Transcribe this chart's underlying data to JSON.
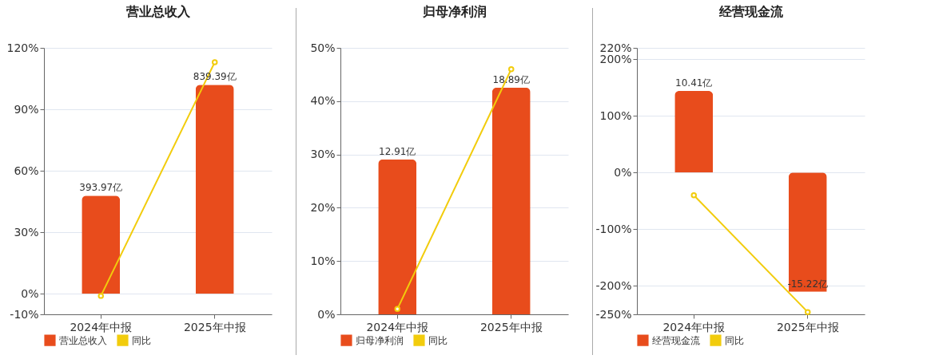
{
  "chart_data": [
    {
      "type": "bar",
      "title": "营业总收入",
      "categories": [
        "2024年中报",
        "2025年中报"
      ],
      "series": [
        {
          "name": "营业总收入",
          "axis": "y2",
          "color": "#e84c1c",
          "values": [
            393.97,
            839.39
          ],
          "value_labels": [
            "393.97亿",
            "839.39亿"
          ]
        },
        {
          "name": "同比",
          "type": "line",
          "color": "#f2cc0c",
          "values": [
            -1,
            113
          ]
        }
      ],
      "ylim": [
        -10,
        120
      ],
      "yticks": [
        {
          "value": -10,
          "label": "-10%"
        },
        {
          "value": 0,
          "label": "0%"
        },
        {
          "value": 30,
          "label": "30%"
        },
        {
          "value": 60,
          "label": "60%"
        },
        {
          "value": 90,
          "label": "90%"
        },
        {
          "value": 120,
          "label": "120%"
        }
      ],
      "y2lim": [
        -82.3,
        987.5
      ],
      "grid": "y",
      "legend": "bottom",
      "marker": "circle",
      "line_style": "solid"
    },
    {
      "type": "bar",
      "title": "归母净利润",
      "categories": [
        "2024年中报",
        "2025年中报"
      ],
      "series": [
        {
          "name": "归母净利润",
          "axis": "y2",
          "color": "#e84c1c",
          "values": [
            12.91,
            18.89
          ],
          "value_labels": [
            "12.91亿",
            "18.89亿"
          ]
        },
        {
          "name": "同比",
          "type": "line",
          "color": "#f2cc0c",
          "values": [
            1,
            46
          ]
        }
      ],
      "ylim": [
        0,
        50
      ],
      "yticks": [
        {
          "value": 0,
          "label": "0%"
        },
        {
          "value": 10,
          "label": "10%"
        },
        {
          "value": 20,
          "label": "20%"
        },
        {
          "value": 30,
          "label": "30%"
        },
        {
          "value": 40,
          "label": "40%"
        },
        {
          "value": 50,
          "label": "50%"
        }
      ],
      "y2lim": [
        0,
        22.2
      ],
      "grid": "y",
      "legend": "bottom",
      "marker": "circle",
      "line_style": "solid"
    },
    {
      "type": "bar",
      "title": "经营现金流",
      "categories": [
        "2024年中报",
        "2025年中报"
      ],
      "series": [
        {
          "name": "经营现金流",
          "axis": "y2",
          "color": "#e84c1c",
          "values": [
            10.41,
            -15.22
          ],
          "value_labels": [
            "10.41亿",
            "-15.22亿"
          ]
        },
        {
          "name": "同比",
          "type": "line",
          "color": "#f2cc0c",
          "values": [
            -40,
            -246
          ]
        }
      ],
      "ylim": [
        -250,
        220
      ],
      "yticks": [
        {
          "value": -250,
          "label": "-250%"
        },
        {
          "value": -200,
          "label": "-200%"
        },
        {
          "value": -100,
          "label": "-100%"
        },
        {
          "value": 0,
          "label": "0%"
        },
        {
          "value": 100,
          "label": "100%"
        },
        {
          "value": 200,
          "label": "200%"
        },
        {
          "value": 220,
          "label": "220%"
        }
      ],
      "y2lim": [
        -18.1,
        15.9
      ],
      "grid": "y",
      "legend": "bottom",
      "marker": "circle",
      "line_style": "solid"
    }
  ]
}
